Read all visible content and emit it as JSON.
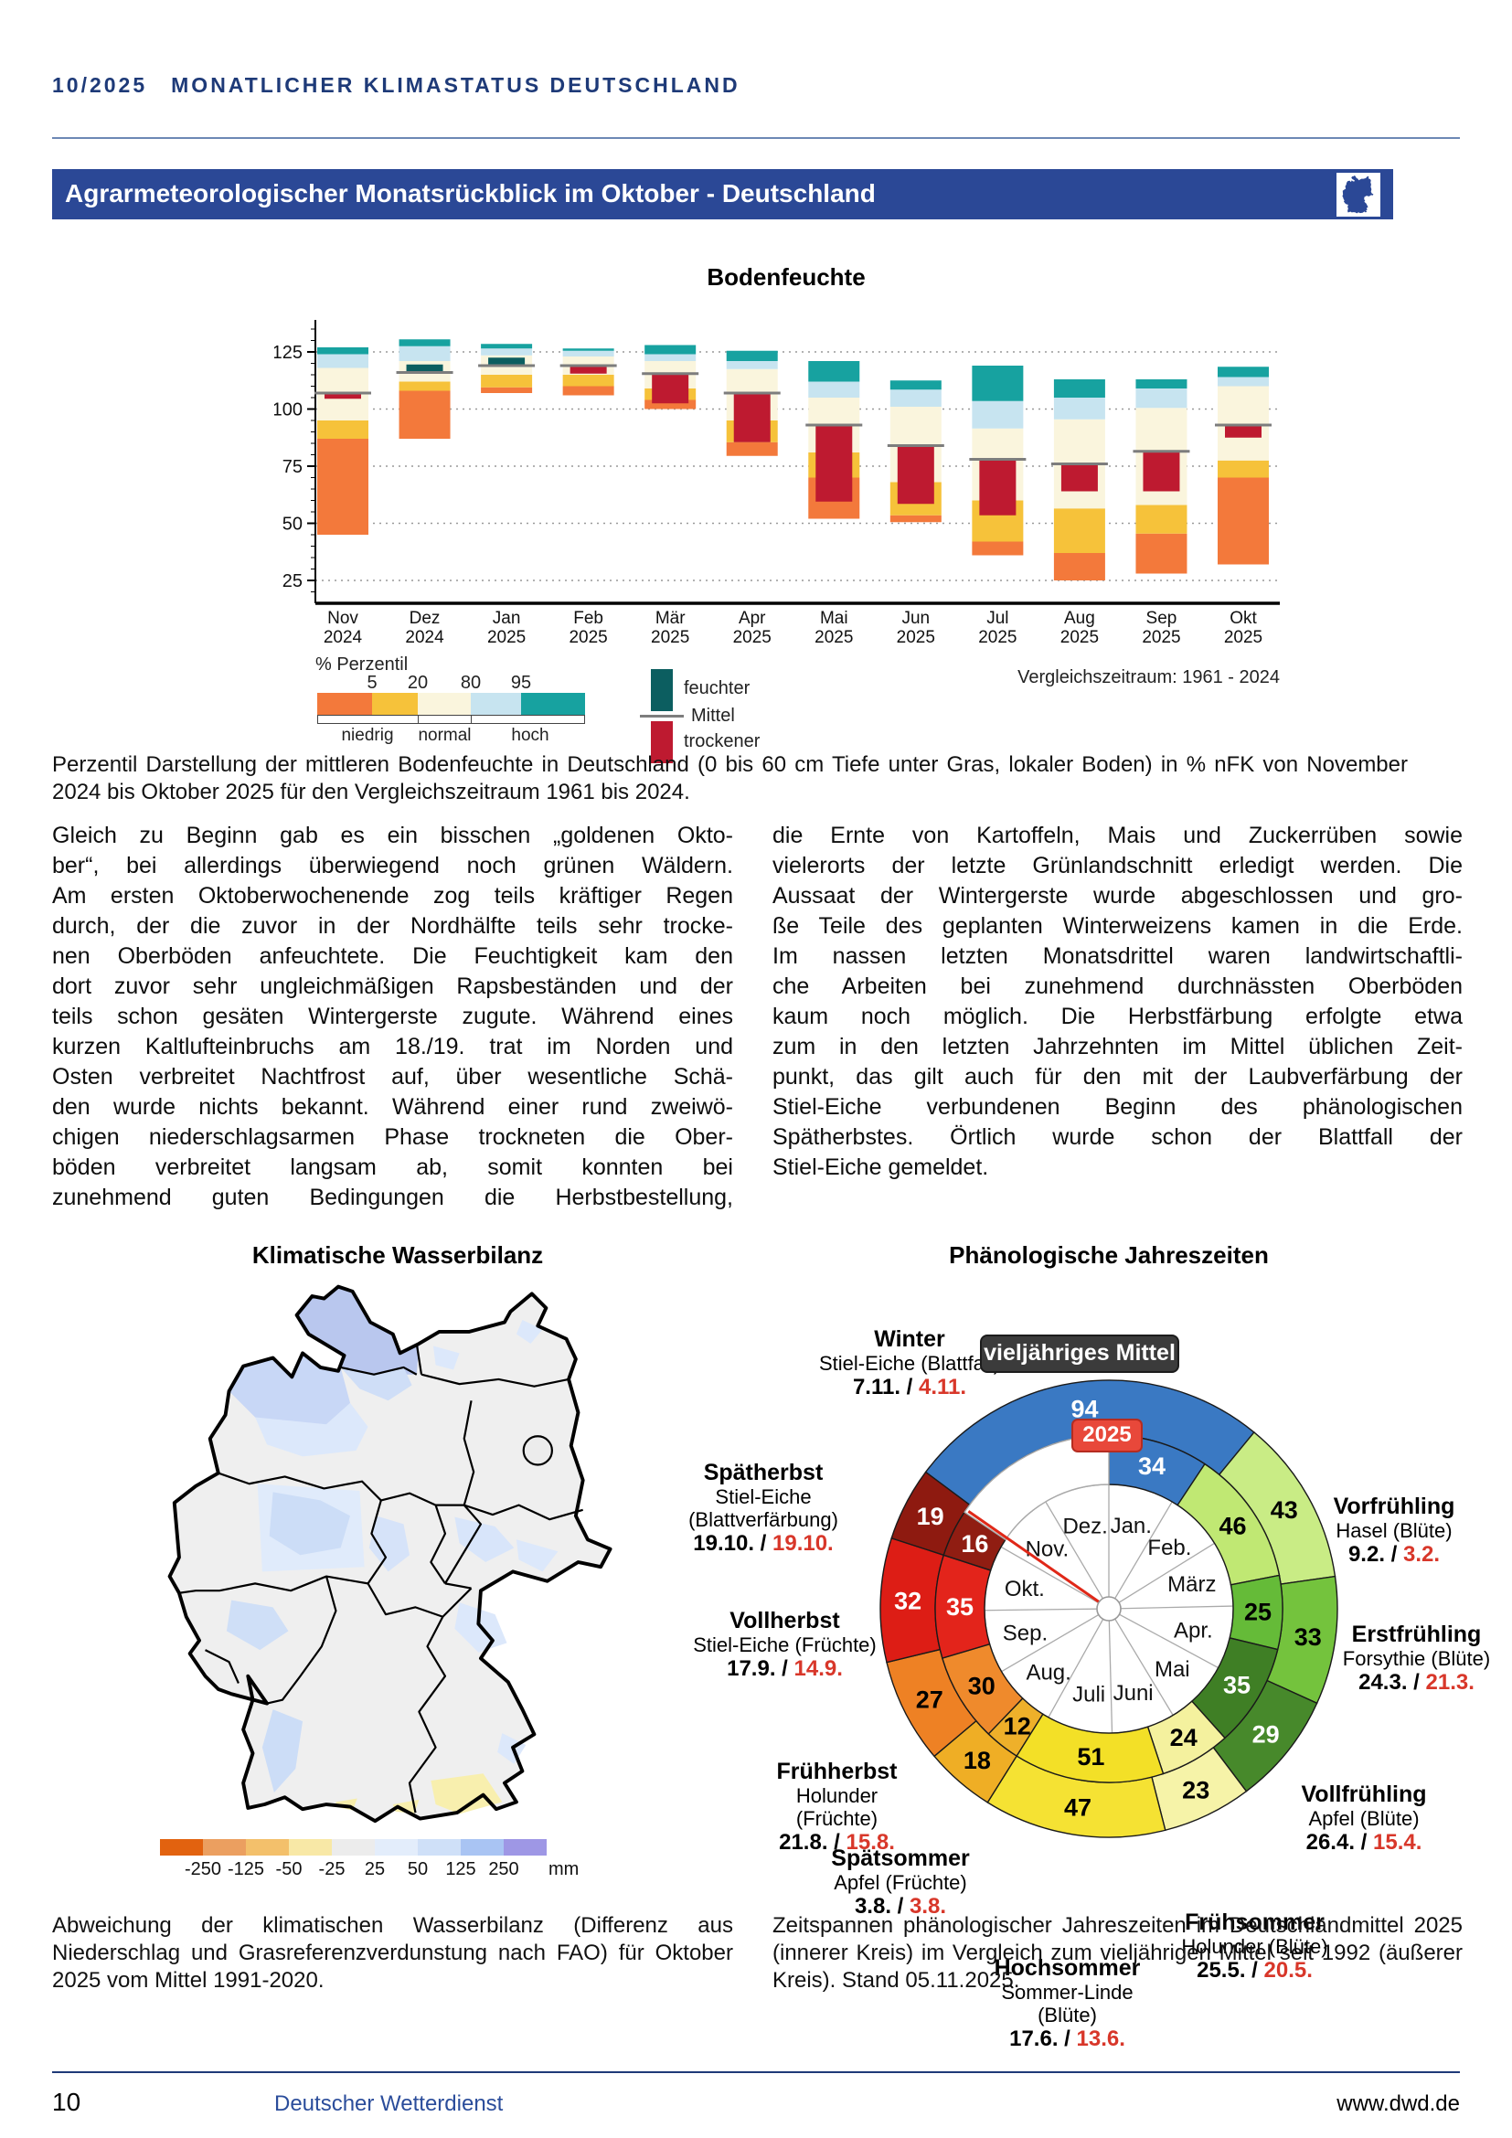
{
  "header": {
    "issue": "10/2025",
    "title": "MONATLICHER KLIMASTATUS DEUTSCHLAND"
  },
  "banner": {
    "title": "Agrarmeteorologischer Monatsrückblick im Oktober - Deutschland",
    "icon": "germany-map-icon"
  },
  "article": {
    "left_lines": [
      "Gleich zu Beginn gab es ein bisschen „goldenen Okto-",
      "ber“, bei allerdings überwiegend noch grünen Wäldern.",
      "Am ersten Oktoberwochenende zog teils kräftiger Regen",
      "durch, der die zuvor in der Nordhälfte teils sehr trocke-",
      "nen Oberböden anfeuchtete. Die Feuchtigkeit kam den",
      "dort zuvor sehr ungleichmäßigen Rapsbeständen und der",
      "teils schon gesäten Wintergerste zugute. Während eines",
      "kurzen Kaltlufteinbruchs am 18./19. trat im Norden und",
      "Osten verbreitet Nachtfrost auf, über wesentliche Schä-",
      "den wurde nichts bekannt. Während einer rund zweiwö-",
      "chigen niederschlagsarmen Phase trockneten die Ober-",
      "böden verbreitet langsam ab, somit konnten bei",
      "zunehmend guten Bedingungen die Herbstbestellung,"
    ],
    "right_lines": [
      "die Ernte von Kartoffeln, Mais und Zuckerrüben sowie",
      "vielerorts der letzte Grünlandschnitt erledigt werden. Die",
      "Aussaat der Wintergerste wurde abgeschlossen und gro-",
      "ße Teile des geplanten Winterweizens kamen in die Erde.",
      "Im nassen letzten Monatsdrittel waren landwirtschaftli-",
      "che Arbeiten bei zunehmend durchnässten Oberböden",
      "kaum noch möglich. Die Herbstfärbung erfolgte etwa",
      "zum in den letzten Jahrzehnten im Mittel üblichen Zeit-",
      "punkt, das gilt auch für den mit der Laubverfärbung der",
      "Stiel-Eiche verbundenen Beginn des phänologischen",
      "Spätherbstes. Örtlich wurde schon der Blattfall der",
      "Stiel-Eiche gemeldet."
    ]
  },
  "captions": {
    "bodenfeuchte": "Perzentil Darstellung der mittleren Bodenfeuchte in Deutschland (0 bis 60 cm Tiefe unter Gras, lokaler Boden) in % nFK von November 2024 bis Oktober 2025 für den Vergleichszeitraum 1961 bis 2024.",
    "wasserbilanz": "Abweichung der klimatischen Wasserbilanz (Differenz aus Niederschlag und Grasreferenzverdunstung nach FAO) für Oktober 2025 vom Mittel 1991-2020.",
    "phenology": "Zeitspannen phänologischer Jahreszeiten im Deutschlandmittel 2025 (innerer Kreis) im Vergleich zum vieljährigen Mittel seit 1992 (äußerer Kreis). Stand 05.11.2025."
  },
  "footer": {
    "page_number": "10",
    "publisher": "Deutscher Wetterdienst",
    "website": "www.dwd.de"
  },
  "chart_data": [
    {
      "type": "bar",
      "title": "Bodenfeuchte",
      "legend_title": "% Perzentil",
      "legend_ticks": [
        "5",
        "20",
        "80",
        "95"
      ],
      "legend_zones": [
        "niedrig",
        "normal",
        "hoch"
      ],
      "legend_overlay": {
        "wetter": "feuchter",
        "mittel": "Mittel",
        "dryer": "trockener"
      },
      "comparison_period": "Vergleichszeitraum: 1961 - 2024",
      "ylabel": "",
      "ylim": [
        15,
        140
      ],
      "yticks": [
        25,
        50,
        75,
        100,
        125
      ],
      "band_colors": {
        "unter5": "#f3793b",
        "p5_20": "#f6c23a",
        "p20_80": "#faf5dd",
        "p80_95": "#c7e4f0",
        "ueber95": "#17a2a0",
        "feuchter": "#0c5e60",
        "trockener": "#be1a30",
        "mittel": "#7d7d7d"
      },
      "months": [
        {
          "label": "Nov",
          "year": "2024",
          "min": 45,
          "p5": 87,
          "p20": 95,
          "p80": 118,
          "p95": 124,
          "max": 127,
          "mittel": 107,
          "wert": 104.5
        },
        {
          "label": "Dez",
          "year": "2024",
          "min": 87,
          "p5": 108,
          "p20": 112,
          "p80": 121,
          "p95": 127.5,
          "max": 130.5,
          "mittel": 116,
          "wert": 119.5
        },
        {
          "label": "Jan",
          "year": "2025",
          "min": 107,
          "p5": 109.5,
          "p20": 115,
          "p80": 123.5,
          "p95": 126.5,
          "max": 128.5,
          "mittel": 119,
          "wert": 122.5
        },
        {
          "label": "Feb",
          "year": "2025",
          "min": 106,
          "p5": 110,
          "p20": 115,
          "p80": 123,
          "p95": 125.5,
          "max": 126.5,
          "mittel": 119,
          "wert": 115.5
        },
        {
          "label": "Mär",
          "year": "2025",
          "min": 100,
          "p5": 104,
          "p20": 109,
          "p80": 121,
          "p95": 124,
          "max": 128,
          "mittel": 115.5,
          "wert": 102.5
        },
        {
          "label": "Apr",
          "year": "2025",
          "min": 79.5,
          "p5": 85.5,
          "p20": 95,
          "p80": 117.5,
          "p95": 121,
          "max": 125.5,
          "mittel": 107,
          "wert": 85.5
        },
        {
          "label": "Mai",
          "year": "2025",
          "min": 52,
          "p5": 70,
          "p20": 81,
          "p80": 105,
          "p95": 112,
          "max": 121,
          "mittel": 93,
          "wert": 59.5
        },
        {
          "label": "Jun",
          "year": "2025",
          "min": 50.5,
          "p5": 53.5,
          "p20": 68,
          "p80": 101,
          "p95": 108.5,
          "max": 112.5,
          "mittel": 84,
          "wert": 58.5
        },
        {
          "label": "Jul",
          "year": "2025",
          "min": 36,
          "p5": 42,
          "p20": 60,
          "p80": 91.5,
          "p95": 103.5,
          "max": 119,
          "mittel": 78,
          "wert": 53.5
        },
        {
          "label": "Aug",
          "year": "2025",
          "min": 25,
          "p5": 37,
          "p20": 56.5,
          "p80": 95.5,
          "p95": 105,
          "max": 113,
          "mittel": 76,
          "wert": 64
        },
        {
          "label": "Sep",
          "year": "2025",
          "min": 28,
          "p5": 45.5,
          "p20": 58,
          "p80": 100.5,
          "p95": 109,
          "max": 113,
          "mittel": 81.5,
          "wert": 64
        },
        {
          "label": "Okt",
          "year": "2025",
          "min": 32,
          "p5": 70,
          "p20": 77.5,
          "p80": 110,
          "p95": 114,
          "max": 118.5,
          "mittel": 93,
          "wert": 87.5
        }
      ]
    },
    {
      "type": "map",
      "title": "Klimatische Wasserbilanz",
      "legend_labels": [
        "-250",
        "-125",
        "-50",
        "-25",
        "25",
        "50",
        "125",
        "250"
      ],
      "legend_unit": "mm",
      "legend_colors": [
        "#e2620f",
        "#eb9f60",
        "#f3c06b",
        "#f8e8a6",
        "#ececec",
        "#e3edfb",
        "#cfe0f8",
        "#a9c4f3",
        "#9e97e5"
      ]
    },
    {
      "type": "pie",
      "title": "Phänologische Jahreszeiten",
      "outer_ring_label": "vieljähriges Mittel",
      "inner_ring_label": "2025",
      "months": [
        "Jan.",
        "Feb.",
        "März",
        "Apr.",
        "Mai",
        "Juni",
        "Juli",
        "Aug.",
        "Sep.",
        "Okt.",
        "Nov.",
        "Dez."
      ],
      "outer_start_day": 311,
      "inner_gap_start_day": 308,
      "pointer_day": 309,
      "seasons": [
        {
          "name": "Winter",
          "phase": "Stiel-Eiche (Blattfall)",
          "date_mittel": "7.11.",
          "date_2025": "4.11.",
          "days_mittel": 94,
          "days_2025": 34,
          "color_outer": "#3a79c3",
          "color_inner": "#3a79c3",
          "text": "#ffffff"
        },
        {
          "name": "Vorfrühling",
          "phase": "Hasel (Blüte)",
          "date_mittel": "9.2.",
          "date_2025": "3.2.",
          "days_mittel": 43,
          "days_2025": 46,
          "color_outer": "#c9ec85",
          "color_inner": "#c0e873",
          "text": "#000000"
        },
        {
          "name": "Erstfrühling",
          "phase": "Forsythie (Blüte)",
          "date_mittel": "24.3.",
          "date_2025": "21.3.",
          "days_mittel": 33,
          "days_2025": 25,
          "color_outer": "#74c33d",
          "color_inner": "#65bb38",
          "text": "#000000"
        },
        {
          "name": "Vollfrühling",
          "phase": "Apfel (Blüte)",
          "date_mittel": "26.4.",
          "date_2025": "15.4.",
          "days_mittel": 29,
          "days_2025": 35,
          "color_outer": "#47892b",
          "color_inner": "#3f7f25",
          "text": "#ffffff"
        },
        {
          "name": "Frühsommer",
          "phase": "Holunder (Blüte)",
          "date_mittel": "25.5.",
          "date_2025": "20.5.",
          "days_mittel": 23,
          "days_2025": 24,
          "color_outer": "#f6f3a8",
          "color_inner": "#f4f19e",
          "text": "#000000"
        },
        {
          "name": "Hochsommer",
          "phase": "Sommer-Linde (Blüte)",
          "date_mittel": "17.6.",
          "date_2025": "13.6.",
          "days_mittel": 47,
          "days_2025": 51,
          "color_outer": "#f5e233",
          "color_inner": "#f3e027",
          "text": "#000000"
        },
        {
          "name": "Spätsommer",
          "phase": "Apfel (Früchte)",
          "date_mittel": "3.8.",
          "date_2025": "3.8.",
          "days_mittel": 18,
          "days_2025": 12,
          "color_outer": "#efae25",
          "color_inner": "#eeb02a",
          "text": "#000000"
        },
        {
          "name": "Frühherbst",
          "phase": "Holunder (Früchte)",
          "date_mittel": "21.8.",
          "date_2025": "15.8.",
          "days_mittel": 27,
          "days_2025": 30,
          "color_outer": "#ee8124",
          "color_inner": "#ef8a2c",
          "text": "#000000"
        },
        {
          "name": "Vollherbst",
          "phase": "Stiel-Eiche (Früchte)",
          "date_mittel": "17.9.",
          "date_2025": "14.9.",
          "days_mittel": 32,
          "days_2025": 35,
          "color_outer": "#dd1d15",
          "color_inner": "#e3241b",
          "text": "#ffffff"
        },
        {
          "name": "Spätherbst",
          "phase": "Stiel-Eiche (Blattverfärbung)",
          "date_mittel": "19.10.",
          "date_2025": "19.10.",
          "days_mittel": 19,
          "days_2025": 16,
          "color_outer": "#8e1a10",
          "color_inner": "#901d12",
          "text": "#ffffff"
        }
      ]
    }
  ]
}
